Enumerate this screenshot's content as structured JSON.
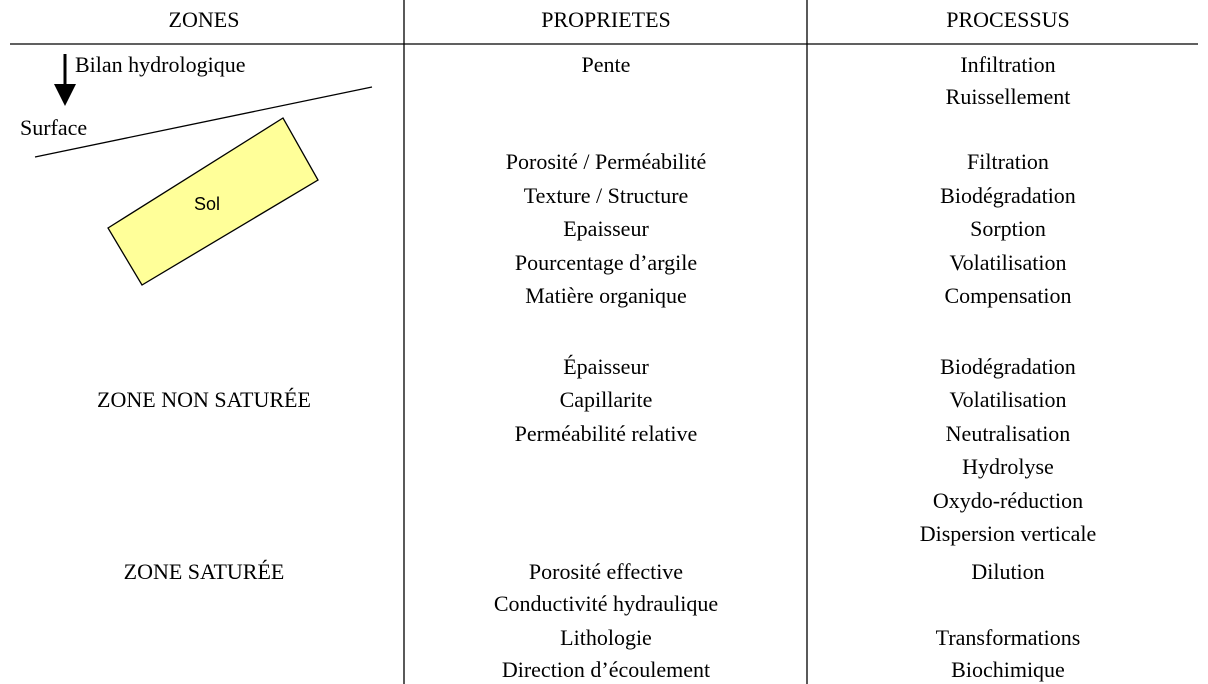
{
  "table": {
    "headers": [
      "ZONES",
      "PROPRIETES",
      "PROCESSUS"
    ],
    "diagram": {
      "flow": "Bilan hydrologique",
      "surface": "Surface",
      "soil": "Sol"
    },
    "zones": [
      "ZONE NON SATURÉE",
      "ZONE SATURÉE"
    ],
    "properties": [
      "Pente",
      "Porosité / Perméabilité",
      "Texture / Structure",
      "Epaisseur",
      "Pourcentage d’argile",
      "Matière organique",
      "Épaisseur",
      "Capillarite",
      "Perméabilité relative",
      "Porosité effective",
      "Conductivité hydraulique",
      "Lithologie",
      "Direction d’écoulement"
    ],
    "processes": [
      "Infiltration",
      "Ruissellement",
      "Filtration",
      "Biodégradation",
      "Sorption",
      "Volatilisation",
      "Compensation",
      "Biodégradation",
      "Volatilisation",
      "Neutralisation",
      "Hydrolyse",
      "Oxydo-réduction",
      "Dispersion verticale",
      "Dilution",
      "Transformations",
      "Biochimique"
    ]
  }
}
